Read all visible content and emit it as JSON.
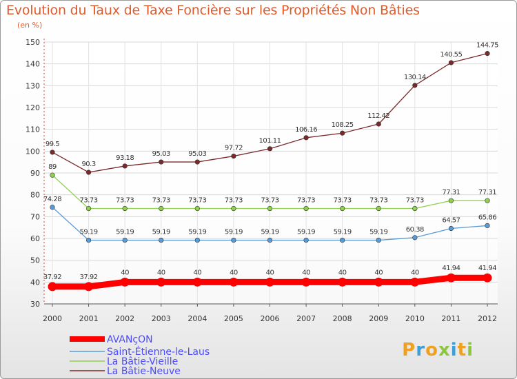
{
  "title": "Evolution du Taux de Taxe Foncière sur les Propriétés Non Bâties",
  "unit_label": "(en %)",
  "logo_text": "Proxiti",
  "chart_data": {
    "type": "line",
    "title": "Evolution du Taux de Taxe Foncière sur les Propriétés Non Bâties",
    "ylabel": "(en %)",
    "xlabel": "",
    "categories": [
      "2000",
      "2001",
      "2002",
      "2003",
      "2004",
      "2005",
      "2006",
      "2007",
      "2008",
      "2009",
      "2010",
      "2011",
      "2012"
    ],
    "ylim": [
      30,
      150
    ],
    "yticks": [
      30,
      40,
      50,
      60,
      70,
      80,
      90,
      100,
      110,
      120,
      130,
      140,
      150
    ],
    "grid": true,
    "legend_position": "bottom-left",
    "series": [
      {
        "name": "AVANçON",
        "color": "#ff0000",
        "labels": [
          "37.92",
          "37.92",
          "40",
          "40",
          "40",
          "40",
          "40",
          "40",
          "40",
          "40",
          "40",
          "41.94",
          "41.94"
        ],
        "values": [
          37.92,
          37.92,
          40,
          40,
          40,
          40,
          40,
          40,
          40,
          40,
          40,
          41.94,
          41.94
        ]
      },
      {
        "name": "Saint-Étienne-le-Laus",
        "color": "#5b9bd5",
        "labels": [
          "74.28",
          "59.19",
          "59.19",
          "59.19",
          "59.19",
          "59.19",
          "59.19",
          "59.19",
          "59.19",
          "59.19",
          "60.38",
          "64.57",
          "65.86"
        ],
        "values": [
          74.28,
          59.19,
          59.19,
          59.19,
          59.19,
          59.19,
          59.19,
          59.19,
          59.19,
          59.19,
          60.38,
          64.57,
          65.86
        ]
      },
      {
        "name": "La Bâtie-Vieille",
        "color": "#8fd14f",
        "labels": [
          "89",
          "73.73",
          "73.73",
          "73.73",
          "73.73",
          "73.73",
          "73.73",
          "73.73",
          "73.73",
          "73.73",
          "73.73",
          "77.31",
          "77.31"
        ],
        "values": [
          89,
          73.73,
          73.73,
          73.73,
          73.73,
          73.73,
          73.73,
          73.73,
          73.73,
          73.73,
          73.73,
          77.31,
          77.31
        ]
      },
      {
        "name": "La Bâtie-Neuve",
        "color": "#7a2a2a",
        "labels": [
          "99.5",
          "90.3",
          "93.18",
          "95.03",
          "95.03",
          "97.72",
          "101.11",
          "106.16",
          "108.25",
          "112.42",
          "130.14",
          "140.55",
          "144.75"
        ],
        "values": [
          99.5,
          90.3,
          93.18,
          95.03,
          95.03,
          97.72,
          101.11,
          106.16,
          108.25,
          112.42,
          130.14,
          140.55,
          144.75
        ]
      }
    ]
  }
}
